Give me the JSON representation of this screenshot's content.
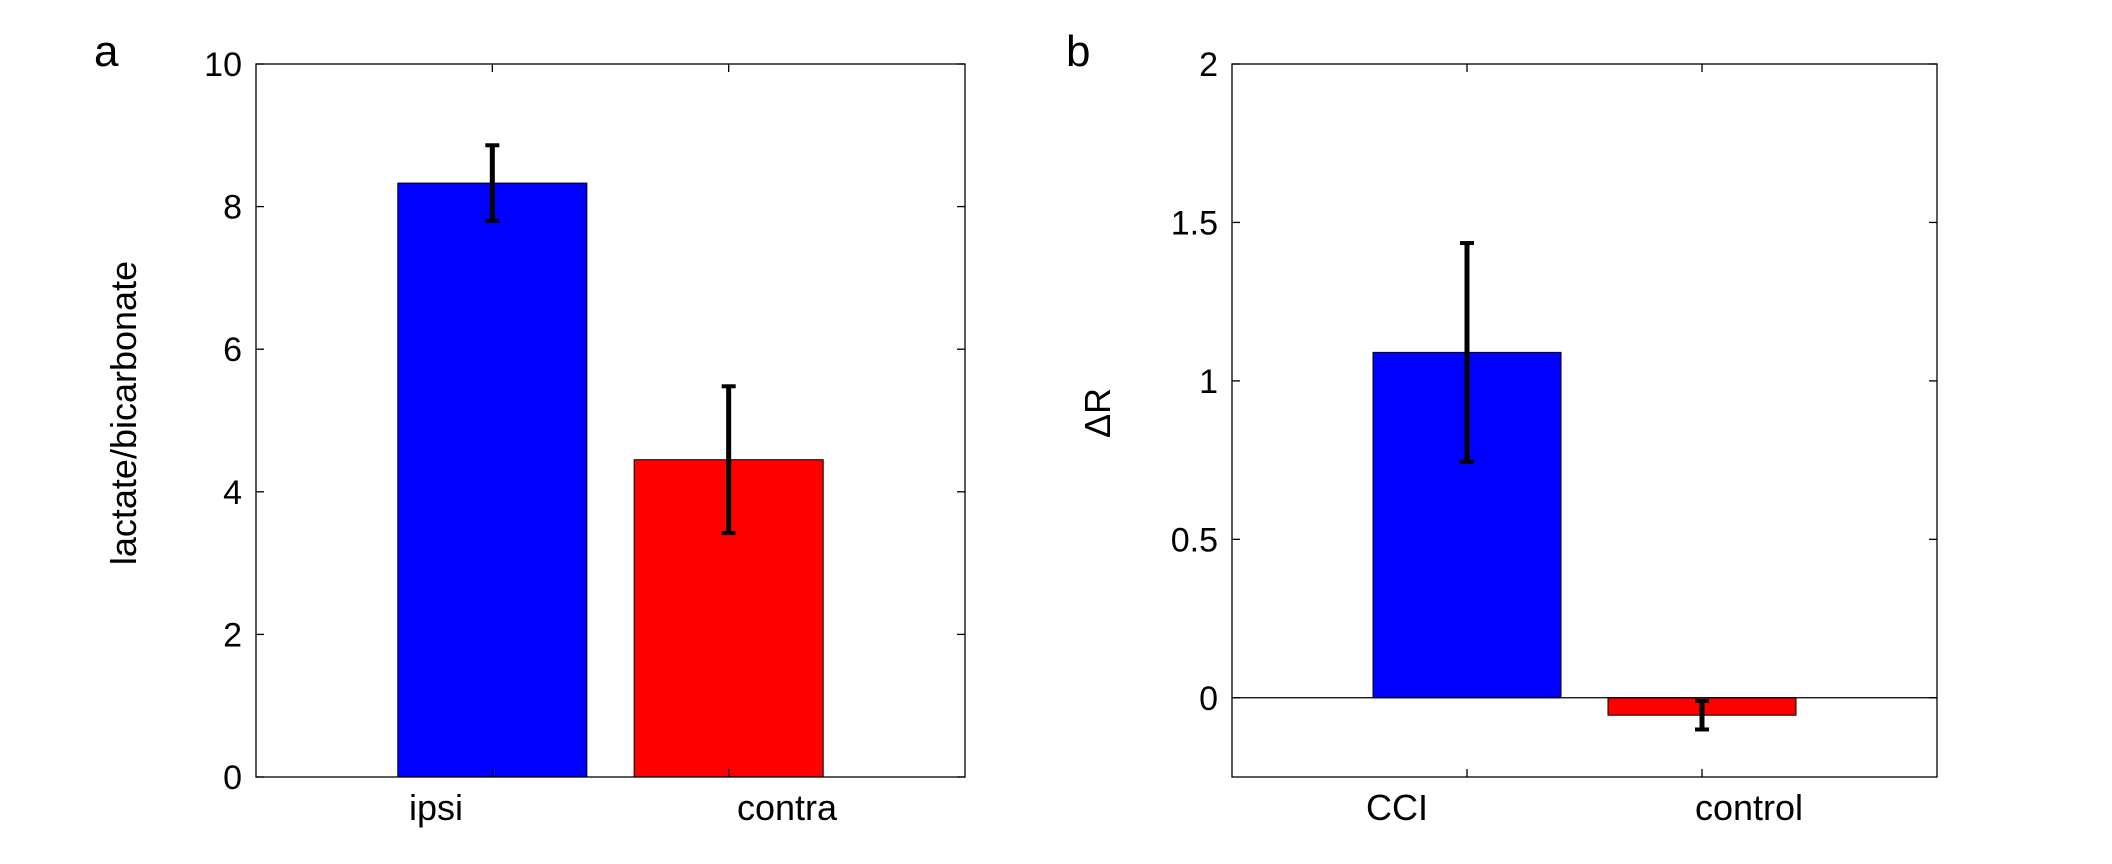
{
  "chart_data": [
    {
      "type": "bar",
      "panel_label": "a",
      "categories": [
        "ipsi",
        "contra"
      ],
      "values": [
        8.33,
        4.45
      ],
      "errors": [
        0.53,
        1.03
      ],
      "colors": [
        "#0000ff",
        "#ff0000"
      ],
      "title": "",
      "xlabel": "",
      "ylabel": "lactate/bicarbonate",
      "ylim": [
        0,
        10
      ],
      "yticks": [
        0,
        2,
        4,
        6,
        8,
        10
      ],
      "ytick_labels": [
        "0",
        "2",
        "4",
        "6",
        "8",
        "10"
      ],
      "grid": false,
      "zero_line": false
    },
    {
      "type": "bar",
      "panel_label": "b",
      "categories": [
        "CCI",
        "control"
      ],
      "values": [
        1.09,
        -0.055
      ],
      "errors": [
        0.345,
        0.045
      ],
      "colors": [
        "#0000ff",
        "#ff0000"
      ],
      "title": "",
      "xlabel": "",
      "ylabel": "ΔR",
      "ylim": [
        -0.25,
        2
      ],
      "yticks": [
        0,
        0.5,
        1,
        1.5,
        2
      ],
      "ytick_labels": [
        "0",
        "0.5",
        "1",
        "1.5",
        "2"
      ],
      "grid": false,
      "zero_line": true
    }
  ]
}
